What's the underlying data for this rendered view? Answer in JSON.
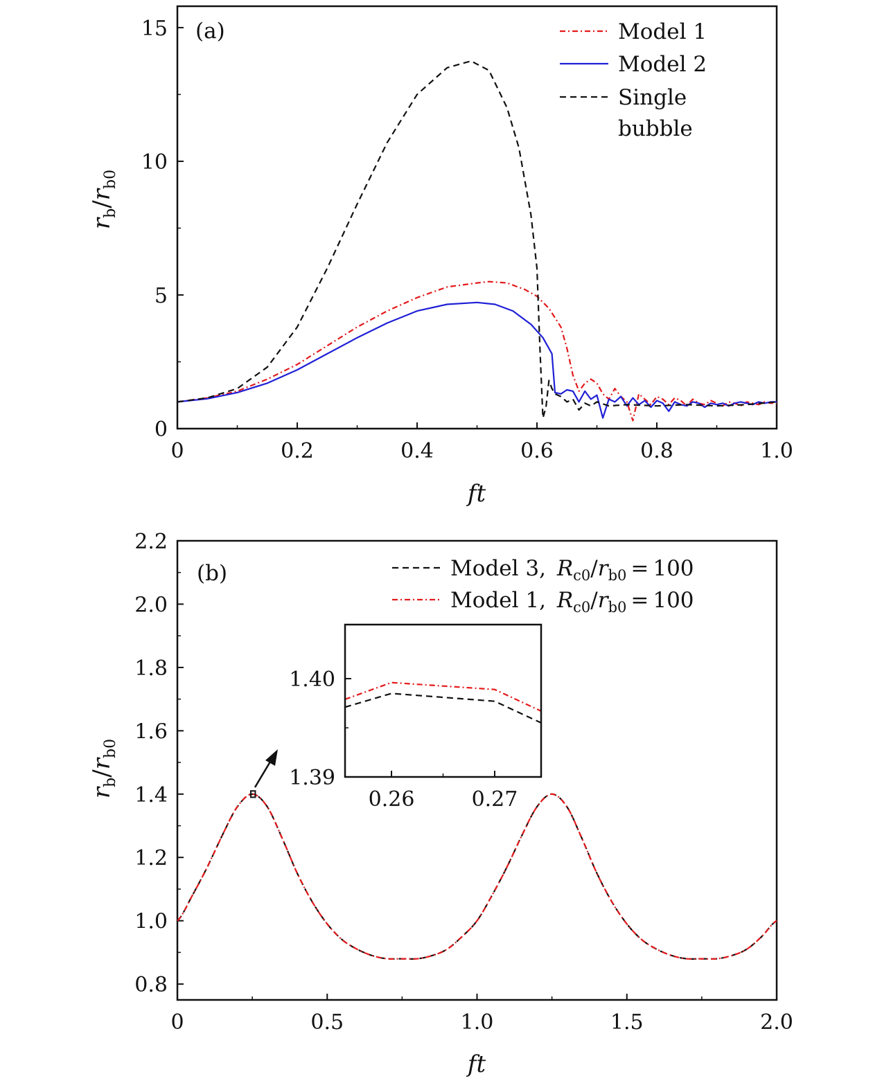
{
  "figure": {
    "panel_a": {
      "tag": "(a)",
      "xlabel": "ft",
      "ylabel_main": "r",
      "ylabel_sub": "b",
      "ylabel_den_sub": "b0"
    },
    "panel_b": {
      "tag": "(b)",
      "xlabel": "ft",
      "ylabel_main": "r",
      "ylabel_sub": "b",
      "ylabel_den_sub": "b0"
    }
  },
  "colors": {
    "model1": "#e31a1c",
    "model2": "#1f1fd6",
    "black": "#111111"
  },
  "chart_data": [
    {
      "type": "line",
      "panel": "(a)",
      "xlabel": "ft",
      "ylabel": "r_b/r_b0",
      "xlim": [
        0,
        1.0
      ],
      "ylim": [
        0,
        15.8
      ],
      "xticks": [
        0,
        0.2,
        0.4,
        0.6,
        0.8,
        1.0
      ],
      "xtick_labels": [
        "0",
        "0.2",
        "0.4",
        "0.6",
        "0.8",
        "1.0"
      ],
      "yticks": [
        0,
        5,
        10,
        15
      ],
      "ytick_labels": [
        "0",
        "5",
        "10",
        "15"
      ],
      "legend": {
        "position": "top-right",
        "entries": [
          "Model 1",
          "Model 2",
          "Single",
          "bubble"
        ]
      },
      "series": [
        {
          "name": "Model 1",
          "style": "dashdot",
          "color": "#e31a1c",
          "x": [
            0,
            0.05,
            0.1,
            0.15,
            0.2,
            0.25,
            0.3,
            0.35,
            0.4,
            0.45,
            0.5,
            0.52,
            0.55,
            0.58,
            0.6,
            0.62,
            0.64,
            0.65,
            0.66,
            0.67,
            0.68,
            0.69,
            0.7,
            0.71,
            0.72,
            0.73,
            0.74,
            0.75,
            0.76,
            0.77,
            0.78,
            0.79,
            0.8,
            0.81,
            0.82,
            0.83,
            0.84,
            0.85,
            0.86,
            0.87,
            0.88,
            0.89,
            0.9,
            0.91,
            0.92,
            0.93,
            0.94,
            0.95,
            0.96,
            0.97,
            0.98,
            0.99,
            1.0
          ],
          "y": [
            1.0,
            1.15,
            1.4,
            1.85,
            2.4,
            3.1,
            3.8,
            4.4,
            4.9,
            5.3,
            5.45,
            5.5,
            5.45,
            5.2,
            4.95,
            4.5,
            3.8,
            3.0,
            2.0,
            1.4,
            1.7,
            1.85,
            1.7,
            1.3,
            1.1,
            1.5,
            1.2,
            1.0,
            0.3,
            1.3,
            1.1,
            0.9,
            1.2,
            1.1,
            0.9,
            1.15,
            1.05,
            0.85,
            1.1,
            0.95,
            0.9,
            1.05,
            0.95,
            0.85,
            1.0,
            0.95,
            0.85,
            1.0,
            0.95,
            0.9,
            1.0,
            0.95,
            0.95
          ]
        },
        {
          "name": "Model 2",
          "style": "solid",
          "color": "#1f1fd6",
          "x": [
            0,
            0.05,
            0.1,
            0.15,
            0.2,
            0.25,
            0.3,
            0.35,
            0.4,
            0.45,
            0.5,
            0.53,
            0.56,
            0.59,
            0.61,
            0.62,
            0.625,
            0.63,
            0.64,
            0.65,
            0.66,
            0.67,
            0.68,
            0.69,
            0.7,
            0.71,
            0.72,
            0.73,
            0.74,
            0.75,
            0.76,
            0.77,
            0.78,
            0.79,
            0.8,
            0.81,
            0.82,
            0.83,
            0.84,
            0.85,
            0.86,
            0.87,
            0.88,
            0.89,
            0.9,
            0.91,
            0.92,
            0.93,
            0.94,
            0.95,
            0.96,
            0.97,
            0.98,
            0.99,
            1.0
          ],
          "y": [
            1.0,
            1.12,
            1.35,
            1.7,
            2.2,
            2.8,
            3.4,
            3.95,
            4.4,
            4.65,
            4.72,
            4.65,
            4.4,
            3.9,
            3.4,
            3.0,
            2.8,
            1.35,
            1.3,
            1.45,
            1.4,
            1.0,
            1.4,
            1.1,
            1.25,
            0.4,
            1.1,
            1.0,
            1.2,
            0.85,
            1.15,
            0.9,
            1.05,
            0.8,
            1.05,
            0.95,
            0.65,
            1.0,
            0.9,
            0.85,
            1.0,
            0.95,
            0.8,
            0.95,
            0.9,
            0.95,
            0.85,
            0.95,
            1.0,
            0.95,
            0.9,
            1.0,
            0.95,
            1.0,
            1.0
          ]
        },
        {
          "name": "Single bubble",
          "style": "dashed",
          "color": "#111111",
          "x": [
            0,
            0.05,
            0.1,
            0.15,
            0.2,
            0.25,
            0.3,
            0.35,
            0.4,
            0.45,
            0.49,
            0.52,
            0.55,
            0.57,
            0.59,
            0.6,
            0.605,
            0.61,
            0.615,
            0.62,
            0.625,
            0.63,
            0.64,
            0.65,
            0.66,
            0.67,
            0.68,
            0.69,
            0.7,
            0.72,
            0.75,
            0.8,
            0.85,
            0.9,
            0.95,
            1.0
          ],
          "y": [
            1.0,
            1.15,
            1.5,
            2.3,
            3.8,
            6.0,
            8.4,
            10.7,
            12.5,
            13.5,
            13.75,
            13.4,
            12.0,
            10.5,
            8.0,
            6.0,
            3.0,
            0.4,
            0.8,
            1.8,
            1.5,
            1.3,
            1.2,
            1.0,
            1.1,
            0.7,
            0.95,
            0.85,
            1.0,
            0.85,
            0.9,
            0.85,
            0.9,
            0.85,
            0.9,
            1.0
          ]
        }
      ]
    },
    {
      "type": "line",
      "panel": "(b)",
      "xlabel": "ft",
      "ylabel": "r_b/r_b0",
      "xlim": [
        0,
        2.0
      ],
      "ylim": [
        0.75,
        2.2
      ],
      "xticks": [
        0,
        0.5,
        1.0,
        1.5,
        2.0
      ],
      "xtick_labels": [
        "0",
        "0.5",
        "1.0",
        "1.5",
        "2.0"
      ],
      "yticks": [
        0.8,
        1.0,
        1.2,
        1.4,
        1.6,
        1.8,
        2.0,
        2.2
      ],
      "ytick_labels": [
        "0.8",
        "1.0",
        "1.2",
        "1.4",
        "1.6",
        "1.8",
        "2.0",
        "2.2"
      ],
      "legend": {
        "position": "top-right",
        "entries": [
          {
            "model": "Model 3,",
            "lhs_main": "R",
            "lhs_sub": "c0",
            "rhs_main": "r",
            "rhs_sub": "b0",
            "value": "100"
          },
          {
            "model": "Model 1,",
            "lhs_main": "R",
            "lhs_sub": "c0",
            "rhs_main": "r",
            "rhs_sub": "b0",
            "value": "100"
          }
        ]
      },
      "series": [
        {
          "name": "Model 3, Rc0/rb0 = 100",
          "style": "dashed",
          "color": "#111111",
          "function": "1 + 0.22*sin(2*pi*x) + 0.18*(sin(2*pi*x))^2 approx; peak 1.40 at x=0.25 and 1.25, minimum 0.88 at x=0.75 and 1.75"
        },
        {
          "name": "Model 1, Rc0/rb0 = 100",
          "style": "dashdot",
          "color": "#e31a1c",
          "function": "same curve"
        }
      ],
      "curve": {
        "x": [
          0,
          0.05,
          0.1,
          0.15,
          0.2,
          0.25,
          0.3,
          0.35,
          0.4,
          0.45,
          0.5,
          0.55,
          0.6,
          0.65,
          0.7,
          0.75,
          0.8,
          0.85,
          0.9,
          0.95,
          1.0,
          1.05,
          1.1,
          1.15,
          1.2,
          1.25,
          1.3,
          1.35,
          1.4,
          1.45,
          1.5,
          1.55,
          1.6,
          1.65,
          1.7,
          1.75,
          1.8,
          1.85,
          1.9,
          1.95,
          2.0
        ],
        "y": [
          1.0,
          1.08,
          1.17,
          1.27,
          1.36,
          1.4,
          1.36,
          1.26,
          1.15,
          1.06,
          0.99,
          0.94,
          0.91,
          0.89,
          0.88,
          0.88,
          0.88,
          0.89,
          0.91,
          0.95,
          1.0,
          1.08,
          1.17,
          1.27,
          1.36,
          1.4,
          1.36,
          1.26,
          1.15,
          1.06,
          0.99,
          0.94,
          0.91,
          0.89,
          0.88,
          0.88,
          0.88,
          0.89,
          0.91,
          0.95,
          1.0
        ]
      },
      "inset": {
        "xlim": [
          0.2555,
          0.2745
        ],
        "ylim": [
          1.39,
          1.4055
        ],
        "xticks": [
          0.26,
          0.27
        ],
        "xtick_labels": [
          "0.26",
          "0.27"
        ],
        "yticks": [
          1.39,
          1.4
        ],
        "ytick_labels": [
          "1.39",
          "1.40"
        ],
        "series": [
          {
            "name": "Model 3",
            "style": "dashed",
            "color": "#111111",
            "x": [
              0.2555,
              0.26,
              0.27,
              0.2745
            ],
            "y": [
              1.3971,
              1.3985,
              1.3977,
              1.3955
            ]
          },
          {
            "name": "Model 1",
            "style": "dashdot",
            "color": "#e31a1c",
            "x": [
              0.2555,
              0.26,
              0.27,
              0.2745
            ],
            "y": [
              1.3979,
              1.3996,
              1.3989,
              1.3967
            ]
          }
        ],
        "zoom_region": {
          "x": [
            0.245,
            0.26
          ],
          "y": [
            1.39,
            1.41
          ]
        }
      }
    }
  ]
}
